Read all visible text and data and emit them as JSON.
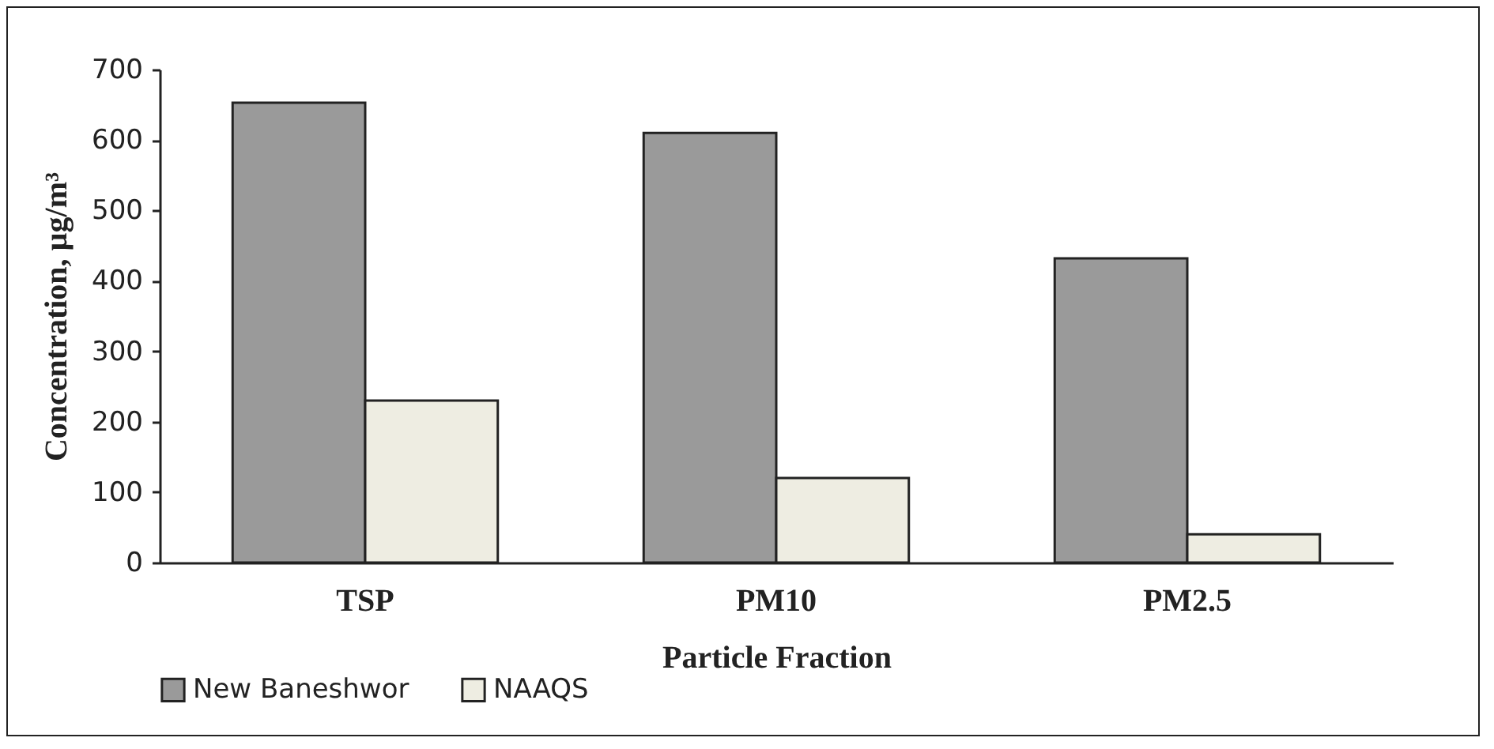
{
  "chart_data": {
    "type": "bar",
    "xlabel": "Particle Fraction",
    "ylabel": "Concentration, µg/m³",
    "categories": [
      "TSP",
      "PM10",
      "PM2.5"
    ],
    "series": [
      {
        "name": "New Baneshwor",
        "color": "#9a9a9a",
        "values": [
          653,
          610,
          432
        ]
      },
      {
        "name": "NAAQS",
        "color": "#eeede2",
        "values": [
          230,
          120,
          40
        ]
      }
    ],
    "ylim": [
      0,
      700
    ],
    "yticks": [
      0,
      100,
      200,
      300,
      400,
      500,
      600,
      700
    ],
    "grid": false,
    "legend": "bottom"
  }
}
